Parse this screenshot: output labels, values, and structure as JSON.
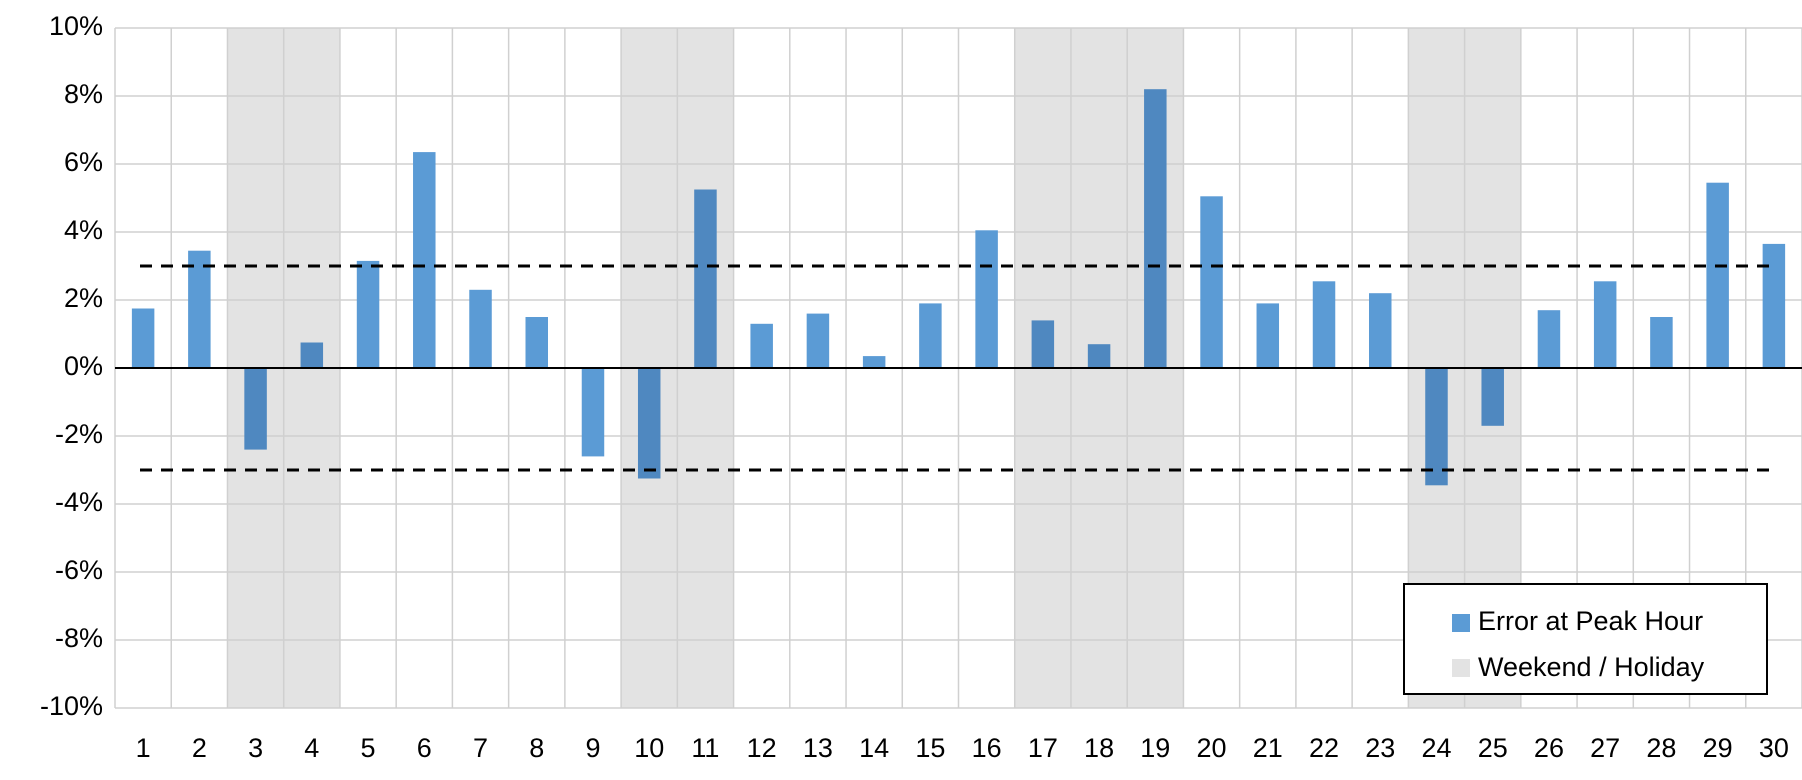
{
  "chart_data": {
    "type": "bar",
    "categories": [
      "1",
      "2",
      "3",
      "4",
      "5",
      "6",
      "7",
      "8",
      "9",
      "10",
      "11",
      "12",
      "13",
      "14",
      "15",
      "16",
      "17",
      "18",
      "19",
      "20",
      "21",
      "22",
      "23",
      "24",
      "25",
      "26",
      "27",
      "28",
      "29",
      "30"
    ],
    "series": [
      {
        "name": "Error at Peak Hour",
        "color": "#5b9bd5",
        "highlight_color": "#4f88c0",
        "values": [
          1.75,
          3.45,
          -2.4,
          0.75,
          3.15,
          6.35,
          2.3,
          1.5,
          -2.6,
          -3.25,
          5.25,
          1.3,
          1.6,
          0.35,
          1.9,
          4.05,
          1.4,
          0.7,
          8.2,
          5.05,
          1.9,
          2.55,
          2.2,
          -3.45,
          -1.7,
          1.7,
          2.55,
          1.5,
          5.45,
          3.65
        ]
      }
    ],
    "shading": {
      "name": "Weekend / Holiday",
      "color": "#e3e3e3",
      "categories": [
        "3",
        "4",
        "10",
        "11",
        "17",
        "18",
        "19",
        "24",
        "25"
      ]
    },
    "reference_lines": [
      3,
      -3
    ],
    "ylim": [
      -10,
      10
    ],
    "yticks": [
      {
        "value": -10,
        "label": "-10%"
      },
      {
        "value": -8,
        "label": "-8%"
      },
      {
        "value": -6,
        "label": "-6%"
      },
      {
        "value": -4,
        "label": "-4%"
      },
      {
        "value": -2,
        "label": "-2%"
      },
      {
        "value": 0,
        "label": "0%"
      },
      {
        "value": 2,
        "label": "2%"
      },
      {
        "value": 4,
        "label": "4%"
      },
      {
        "value": 6,
        "label": "6%"
      },
      {
        "value": 8,
        "label": "8%"
      },
      {
        "value": 10,
        "label": "10%"
      }
    ],
    "grid": true,
    "legend": "lower right"
  }
}
